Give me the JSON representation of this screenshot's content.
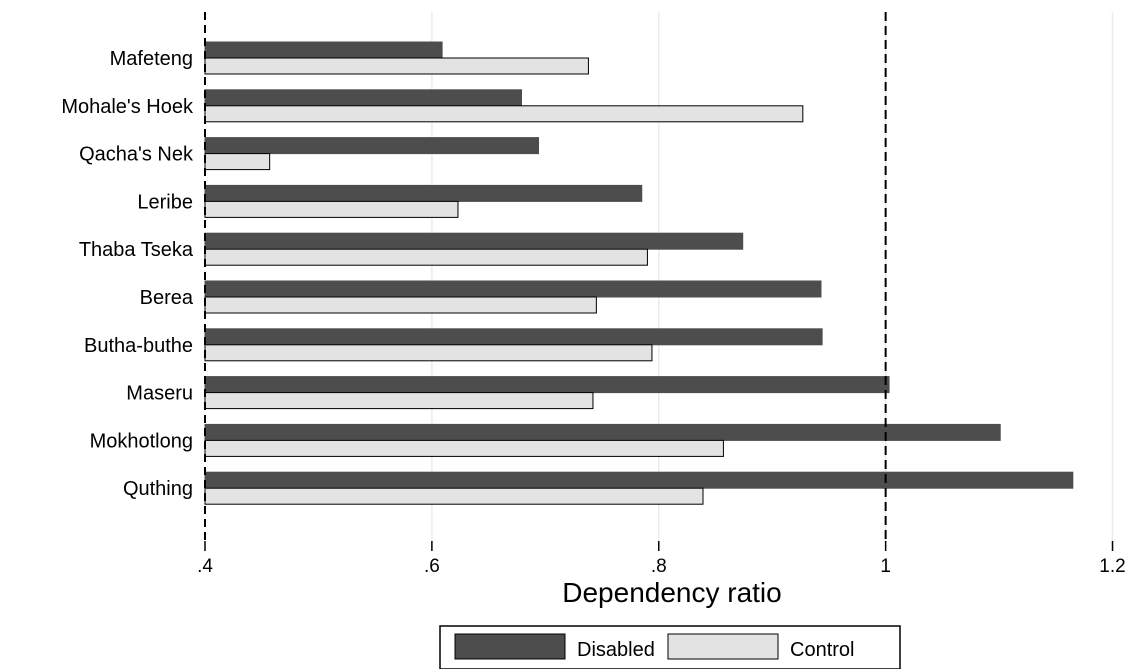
{
  "chart_data": {
    "type": "bar",
    "orientation": "horizontal",
    "categories": [
      "Mafeteng",
      "Mohale's Hoek",
      "Qacha's Nek",
      "Leribe",
      "Thaba Tseka",
      "Berea",
      "Butha-buthe",
      "Maseru",
      "Mokhotlong",
      "Quthing"
    ],
    "series": [
      {
        "name": "Disabled",
        "color": "#4d4d4d",
        "values": [
          0.609,
          0.679,
          0.694,
          0.785,
          0.874,
          0.943,
          0.944,
          1.003,
          1.101,
          1.165
        ]
      },
      {
        "name": "Control",
        "color": "#e3e3e3",
        "values": [
          0.738,
          0.927,
          0.457,
          0.623,
          0.79,
          0.745,
          0.794,
          0.742,
          0.857,
          0.839
        ]
      }
    ],
    "xlabel": "Dependency ratio",
    "xlim": [
      0.4,
      1.22
    ],
    "ticks": [
      {
        "value": 0.4,
        "label": ".4"
      },
      {
        "value": 0.6,
        "label": ".6"
      },
      {
        "value": 0.8,
        "label": ".8"
      },
      {
        "value": 1.0,
        "label": "1"
      },
      {
        "value": 1.2,
        "label": "1.2"
      }
    ],
    "reference_line": 1.0,
    "grid": true,
    "legend_position": "bottom"
  }
}
